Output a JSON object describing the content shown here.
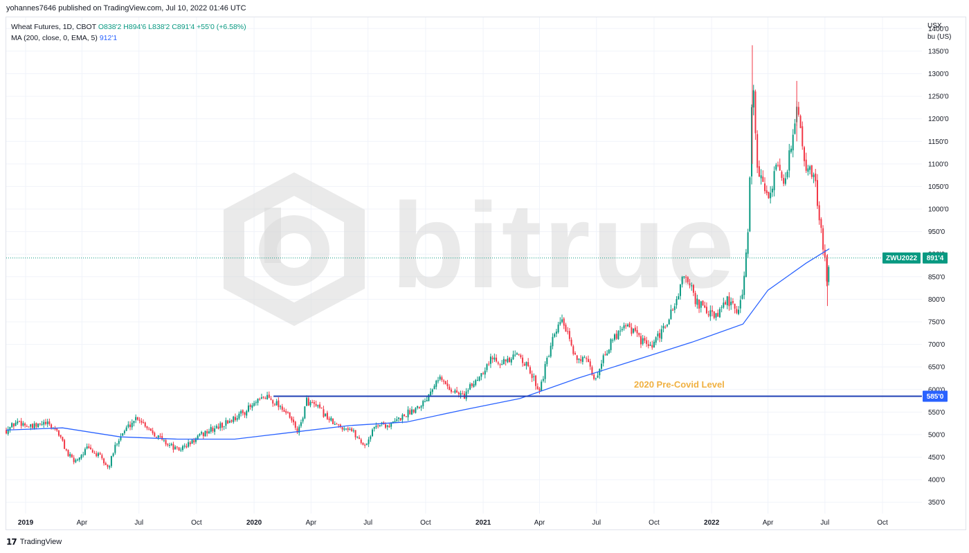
{
  "header": {
    "published": "yohannes7646 published on TradingView.com, Jul 10, 2022 01:46 UTC"
  },
  "legend": {
    "symbol": "Wheat Futures, 1D, CBOT",
    "ohlc": "O838'2  H894'6  L838'2  C891'4  +55'0 (+6.58%)",
    "ma_name": "MA (200, close, 0, EMA, 5)",
    "ma_value": "912'1"
  },
  "axis": {
    "currency": "USX",
    "unit": "bu (US)"
  },
  "watermark": {
    "text": "bitrue",
    "icon": "bitrue-logo-icon"
  },
  "footer": {
    "brand": "TradingView",
    "icon": "tradingview-logo-icon"
  },
  "colors": {
    "up": "#089981",
    "down": "#f23645",
    "ma": "#2962ff",
    "hline": "#1e3fb4",
    "annotation": "#f0b040",
    "price_tag": "#089981"
  },
  "chart_data": {
    "type": "candlestick",
    "title": "Wheat Futures, 1D, CBOT",
    "ylim": [
      325,
      1425
    ],
    "y_ticks": [
      350,
      400,
      450,
      500,
      550,
      600,
      650,
      700,
      750,
      800,
      850,
      900,
      950,
      1000,
      1050,
      1100,
      1150,
      1200,
      1250,
      1300,
      1350,
      1400
    ],
    "y_tick_labels": [
      "350'0",
      "400'0",
      "450'0",
      "500'0",
      "550'0",
      "600'0",
      "650'0",
      "700'0",
      "750'0",
      "800'0",
      "850'0",
      "900'0",
      "950'0",
      "1000'0",
      "1050'0",
      "1100'0",
      "1150'0",
      "1200'0",
      "1250'0",
      "1300'0",
      "1350'0",
      "1400'0"
    ],
    "x_ticks": [
      {
        "label": "2019",
        "date": "2019-01-01",
        "year": true
      },
      {
        "label": "Apr",
        "date": "2019-04-01"
      },
      {
        "label": "Jul",
        "date": "2019-07-01"
      },
      {
        "label": "Oct",
        "date": "2019-10-01"
      },
      {
        "label": "2020",
        "date": "2020-01-01",
        "year": true
      },
      {
        "label": "Apr",
        "date": "2020-04-01"
      },
      {
        "label": "Jul",
        "date": "2020-07-01"
      },
      {
        "label": "Oct",
        "date": "2020-10-01"
      },
      {
        "label": "2021",
        "date": "2021-01-01",
        "year": true
      },
      {
        "label": "Apr",
        "date": "2021-04-01"
      },
      {
        "label": "Jul",
        "date": "2021-07-01"
      },
      {
        "label": "Oct",
        "date": "2021-10-01"
      },
      {
        "label": "2022",
        "date": "2022-01-01",
        "year": true
      },
      {
        "label": "Apr",
        "date": "2022-04-01"
      },
      {
        "label": "Jul",
        "date": "2022-07-01"
      },
      {
        "label": "Oct",
        "date": "2022-10-01"
      }
    ],
    "price_path": [
      [
        "2018-12-01",
        510
      ],
      [
        "2018-12-20",
        530
      ],
      [
        "2019-01-10",
        515
      ],
      [
        "2019-02-01",
        525
      ],
      [
        "2019-02-20",
        510
      ],
      [
        "2019-03-10",
        455
      ],
      [
        "2019-03-20",
        440
      ],
      [
        "2019-04-10",
        470
      ],
      [
        "2019-04-30",
        450
      ],
      [
        "2019-05-13",
        425
      ],
      [
        "2019-05-28",
        490
      ],
      [
        "2019-06-15",
        520
      ],
      [
        "2019-06-28",
        540
      ],
      [
        "2019-07-20",
        510
      ],
      [
        "2019-08-10",
        485
      ],
      [
        "2019-09-01",
        465
      ],
      [
        "2019-09-20",
        480
      ],
      [
        "2019-10-15",
        505
      ],
      [
        "2019-11-10",
        520
      ],
      [
        "2019-12-10",
        545
      ],
      [
        "2020-01-10",
        575
      ],
      [
        "2020-01-22",
        585
      ],
      [
        "2020-02-15",
        560
      ],
      [
        "2020-03-01",
        530
      ],
      [
        "2020-03-12",
        505
      ],
      [
        "2020-03-25",
        575
      ],
      [
        "2020-04-15",
        555
      ],
      [
        "2020-05-10",
        520
      ],
      [
        "2020-06-01",
        515
      ],
      [
        "2020-06-26",
        475
      ],
      [
        "2020-07-15",
        525
      ],
      [
        "2020-08-05",
        520
      ],
      [
        "2020-08-25",
        540
      ],
      [
        "2020-09-10",
        555
      ],
      [
        "2020-09-30",
        575
      ],
      [
        "2020-10-20",
        630
      ],
      [
        "2020-11-10",
        600
      ],
      [
        "2020-12-01",
        585
      ],
      [
        "2020-12-20",
        620
      ],
      [
        "2021-01-15",
        670
      ],
      [
        "2021-02-10",
        660
      ],
      [
        "2021-02-28",
        680
      ],
      [
        "2021-03-20",
        630
      ],
      [
        "2021-04-01",
        600
      ],
      [
        "2021-04-20",
        700
      ],
      [
        "2021-05-07",
        755
      ],
      [
        "2021-05-25",
        680
      ],
      [
        "2021-06-15",
        660
      ],
      [
        "2021-06-30",
        620
      ],
      [
        "2021-07-10",
        670
      ],
      [
        "2021-08-01",
        720
      ],
      [
        "2021-08-15",
        750
      ],
      [
        "2021-09-10",
        710
      ],
      [
        "2021-09-25",
        690
      ],
      [
        "2021-10-15",
        730
      ],
      [
        "2021-11-01",
        780
      ],
      [
        "2021-11-20",
        860
      ],
      [
        "2021-12-05",
        800
      ],
      [
        "2021-12-25",
        770
      ],
      [
        "2022-01-10",
        760
      ],
      [
        "2022-01-25",
        800
      ],
      [
        "2022-02-10",
        770
      ],
      [
        "2022-02-20",
        820
      ],
      [
        "2022-03-01",
        960
      ],
      [
        "2022-03-07",
        1300
      ],
      [
        "2022-03-15",
        1100
      ],
      [
        "2022-03-31",
        1020
      ],
      [
        "2022-04-15",
        1090
      ],
      [
        "2022-04-29",
        1060
      ],
      [
        "2022-05-17",
        1230
      ],
      [
        "2022-05-31",
        1100
      ],
      [
        "2022-06-15",
        1060
      ],
      [
        "2022-06-30",
        900
      ],
      [
        "2022-07-05",
        810
      ],
      [
        "2022-07-08",
        891.5
      ]
    ],
    "ma_200_ema": [
      [
        "2018-12-01",
        510
      ],
      [
        "2019-03-01",
        515
      ],
      [
        "2019-06-01",
        495
      ],
      [
        "2019-09-01",
        490
      ],
      [
        "2019-12-01",
        490
      ],
      [
        "2020-03-01",
        505
      ],
      [
        "2020-06-01",
        520
      ],
      [
        "2020-09-01",
        528
      ],
      [
        "2020-12-01",
        555
      ],
      [
        "2021-03-01",
        580
      ],
      [
        "2021-06-01",
        625
      ],
      [
        "2021-09-01",
        665
      ],
      [
        "2021-12-01",
        705
      ],
      [
        "2022-02-20",
        745
      ],
      [
        "2022-04-01",
        820
      ],
      [
        "2022-06-01",
        880
      ],
      [
        "2022-07-08",
        912
      ]
    ],
    "horizontal_line": {
      "value": 585,
      "label": "585'0",
      "start": "2020-02-01"
    },
    "annotation": "2020 Pre-Covid Level",
    "last_price": {
      "symbol": "ZWU2022",
      "value": 891.5,
      "label": "891'4"
    }
  }
}
